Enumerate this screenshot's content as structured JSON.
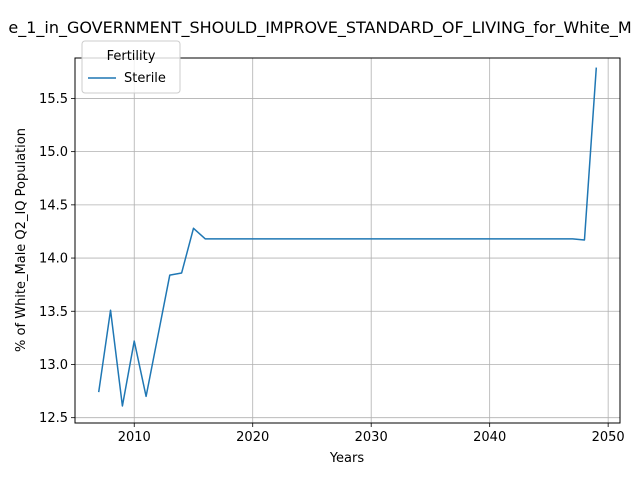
{
  "chart_data": {
    "type": "line",
    "title": "e_1_in_GOVERNMENT_SHOULD_IMPROVE_STANDARD_OF_LIVING_for_White_M",
    "xlabel": "Years",
    "ylabel": "% of White_Male Q2_IQ Population",
    "xlim": [
      2005,
      2051
    ],
    "ylim": [
      12.45,
      15.88
    ],
    "xticks": [
      2010,
      2020,
      2030,
      2040,
      2050
    ],
    "yticks": [
      12.5,
      13.0,
      13.5,
      14.0,
      14.5,
      15.0,
      15.5
    ],
    "xtick_labels": [
      "2010",
      "2020",
      "2030",
      "2040",
      "2050"
    ],
    "ytick_labels": [
      "12.5",
      "13.0",
      "13.5",
      "14.0",
      "14.5",
      "15.0",
      "15.5"
    ],
    "grid": true,
    "legend": {
      "title": "Fertility",
      "position": "top-left"
    },
    "series": [
      {
        "name": "Sterile",
        "color": "#1f77b4",
        "x": [
          2007,
          2008,
          2009,
          2010,
          2011,
          2012,
          2013,
          2014,
          2015,
          2016,
          2017,
          2018,
          2019,
          2020,
          2021,
          2022,
          2023,
          2024,
          2025,
          2026,
          2027,
          2028,
          2029,
          2030,
          2031,
          2032,
          2033,
          2034,
          2035,
          2036,
          2037,
          2038,
          2039,
          2040,
          2041,
          2042,
          2043,
          2044,
          2045,
          2046,
          2047,
          2048,
          2049
        ],
        "y": [
          12.74,
          13.51,
          12.61,
          13.22,
          12.7,
          13.27,
          13.84,
          13.86,
          14.28,
          14.18,
          14.18,
          14.18,
          14.18,
          14.18,
          14.18,
          14.18,
          14.18,
          14.18,
          14.18,
          14.18,
          14.18,
          14.18,
          14.18,
          14.18,
          14.18,
          14.18,
          14.18,
          14.18,
          14.18,
          14.18,
          14.18,
          14.18,
          14.18,
          14.18,
          14.18,
          14.18,
          14.18,
          14.18,
          14.18,
          14.18,
          14.18,
          14.17,
          15.79
        ]
      }
    ]
  }
}
